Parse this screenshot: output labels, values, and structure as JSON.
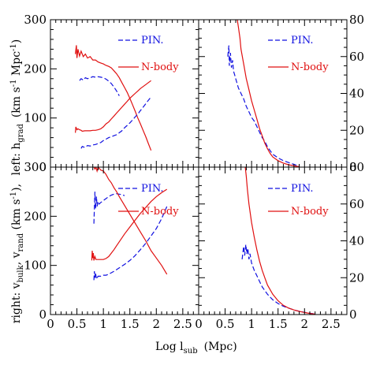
{
  "chart_data": [
    {
      "type": "line",
      "panel": "top-left",
      "xlim": [
        0,
        2.8
      ],
      "ylim": [
        0,
        300
      ],
      "legend": [
        {
          "label": "PIN.",
          "style": "dashed",
          "color": "#1010e0"
        },
        {
          "label": "N-body",
          "style": "solid",
          "color": "#e01010"
        }
      ],
      "series": [
        {
          "name": "PIN.",
          "style": "dashed",
          "color": "#1010e0",
          "x": [
            0.55,
            0.58,
            0.62,
            0.66,
            0.7,
            0.75,
            0.8,
            0.85,
            0.9,
            0.95,
            1.0,
            1.05,
            1.1,
            1.15,
            1.2,
            1.25,
            1.3
          ],
          "y": [
            176,
            180,
            177,
            182,
            180,
            182,
            184,
            183,
            184,
            183,
            182,
            179,
            175,
            170,
            163,
            155,
            145
          ]
        },
        {
          "name": "N-body",
          "style": "solid",
          "color": "#e01010",
          "x": [
            0.47,
            0.49,
            0.5,
            0.52,
            0.55,
            0.58,
            0.62,
            0.66,
            0.7,
            0.75,
            0.8,
            0.85,
            0.9,
            0.95,
            1.0,
            1.05,
            1.1,
            1.15,
            1.2,
            1.25,
            1.3,
            1.35,
            1.4,
            1.45,
            1.5,
            1.55,
            1.6,
            1.65,
            1.7,
            1.75,
            1.8,
            1.85,
            1.9
          ],
          "y": [
            230,
            248,
            222,
            240,
            226,
            236,
            225,
            230,
            222,
            225,
            218,
            218,
            214,
            212,
            210,
            207,
            205,
            202,
            196,
            190,
            182,
            172,
            162,
            152,
            140,
            127,
            114,
            100,
            88,
            75,
            62,
            48,
            34
          ]
        },
        {
          "name": "PIN.",
          "style": "dashed",
          "color": "#1010e0",
          "x": [
            0.58,
            0.6,
            0.65,
            0.7,
            0.75,
            0.8,
            0.85,
            0.9,
            0.95,
            1.0,
            1.05,
            1.1,
            1.15,
            1.2,
            1.25,
            1.3,
            1.35,
            1.4,
            1.45,
            1.5,
            1.55,
            1.6,
            1.65,
            1.7,
            1.75,
            1.8,
            1.85,
            1.9
          ],
          "y": [
            38,
            42,
            40,
            44,
            43,
            45,
            46,
            48,
            50,
            54,
            57,
            60,
            62,
            64,
            66,
            70,
            74,
            80,
            85,
            90,
            96,
            102,
            108,
            115,
            122,
            129,
            136,
            143
          ]
        },
        {
          "name": "N-body",
          "style": "solid",
          "color": "#e01010",
          "x": [
            0.47,
            0.48,
            0.5,
            0.52,
            0.55,
            0.58,
            0.6,
            0.65,
            0.7,
            0.75,
            0.8,
            0.85,
            0.9,
            0.95,
            1.0,
            1.05,
            1.1,
            1.15,
            1.2,
            1.25,
            1.3,
            1.35,
            1.4,
            1.45,
            1.5,
            1.55,
            1.6,
            1.65,
            1.7,
            1.75,
            1.8,
            1.85,
            1.9
          ],
          "y": [
            70,
            82,
            76,
            78,
            76,
            75,
            73,
            74,
            74,
            74,
            75,
            75,
            76,
            78,
            82,
            88,
            92,
            98,
            104,
            110,
            116,
            122,
            128,
            134,
            140,
            145,
            150,
            155,
            160,
            164,
            168,
            172,
            176
          ]
        }
      ]
    },
    {
      "type": "line",
      "panel": "top-right",
      "xlim": [
        0,
        2.8
      ],
      "ylim": [
        0,
        80
      ],
      "legend": [
        {
          "label": "PIN.",
          "style": "dashed",
          "color": "#1010e0"
        },
        {
          "label": "N-body",
          "style": "solid",
          "color": "#e01010"
        }
      ],
      "series": [
        {
          "name": "PIN.",
          "style": "dashed",
          "color": "#1010e0",
          "x": [
            0.55,
            0.57,
            0.58,
            0.6,
            0.62,
            0.64,
            0.66,
            0.68,
            0.7,
            0.75,
            0.8,
            0.85,
            0.9,
            0.95,
            1.0,
            1.05,
            1.1,
            1.15,
            1.2,
            1.25,
            1.3,
            1.35,
            1.4,
            1.5,
            1.6,
            1.7,
            1.8,
            1.9
          ],
          "y": [
            60,
            66,
            55,
            62,
            54,
            58,
            52,
            50,
            48,
            43,
            40,
            37,
            33,
            30,
            27,
            25,
            22,
            19,
            16,
            14,
            11,
            9,
            7,
            5,
            3.5,
            2.5,
            1.5,
            0.5
          ]
        },
        {
          "name": "N-body",
          "style": "solid",
          "color": "#e01010",
          "x": [
            0.73,
            0.75,
            0.78,
            0.8,
            0.85,
            0.9,
            0.95,
            1.0,
            1.05,
            1.1,
            1.15,
            1.2,
            1.25,
            1.3,
            1.35,
            1.4,
            1.5,
            1.6,
            1.7,
            1.8,
            1.9
          ],
          "y": [
            80,
            76,
            70,
            64,
            56,
            48,
            42,
            36,
            31,
            26,
            21,
            17,
            13,
            10,
            7.5,
            5.5,
            3.5,
            2.2,
            1.3,
            0.7,
            0.2
          ]
        }
      ]
    },
    {
      "type": "line",
      "panel": "bottom-left",
      "xlim": [
        0,
        2.8
      ],
      "ylim": [
        0,
        300
      ],
      "legend": [
        {
          "label": "PIN.",
          "style": "dashed",
          "color": "#1010e0"
        },
        {
          "label": "N-body",
          "style": "solid",
          "color": "#e01010"
        }
      ],
      "series": [
        {
          "name": "PIN.",
          "style": "dashed",
          "color": "#1010e0",
          "x": [
            0.82,
            0.84,
            0.85,
            0.87,
            0.88,
            0.9,
            0.92,
            0.95,
            1.0,
            1.05,
            1.1,
            1.15,
            1.2,
            1.25,
            1.3,
            1.35,
            1.4
          ],
          "y": [
            185,
            250,
            215,
            240,
            220,
            230,
            225,
            228,
            232,
            236,
            240,
            243,
            245,
            246,
            245,
            244,
            242
          ]
        },
        {
          "name": "N-body",
          "style": "solid",
          "color": "#e01010",
          "x": [
            0.82,
            0.84,
            0.86,
            0.88,
            0.9,
            0.95,
            1.0,
            1.05,
            1.1,
            1.15,
            1.2,
            1.25,
            1.3,
            1.4,
            1.5,
            1.6,
            1.7,
            1.8,
            1.9,
            2.0,
            2.1,
            2.2
          ],
          "y": [
            300,
            296,
            300,
            292,
            300,
            294,
            292,
            285,
            275,
            268,
            258,
            250,
            240,
            222,
            204,
            186,
            168,
            150,
            130,
            115,
            100,
            82
          ]
        },
        {
          "name": "PIN.",
          "style": "dashed",
          "color": "#1010e0",
          "x": [
            0.82,
            0.83,
            0.84,
            0.85,
            0.87,
            0.9,
            0.95,
            1.0,
            1.05,
            1.1,
            1.15,
            1.2,
            1.3,
            1.4,
            1.5,
            1.6,
            1.7,
            1.8,
            1.9,
            2.0,
            2.1,
            2.2
          ],
          "y": [
            70,
            88,
            75,
            85,
            72,
            78,
            78,
            80,
            80,
            82,
            85,
            88,
            95,
            102,
            110,
            120,
            132,
            145,
            160,
            175,
            195,
            220
          ]
        },
        {
          "name": "N-body",
          "style": "solid",
          "color": "#e01010",
          "x": [
            0.78,
            0.79,
            0.8,
            0.81,
            0.82,
            0.84,
            0.86,
            0.9,
            0.95,
            1.0,
            1.05,
            1.1,
            1.15,
            1.2,
            1.25,
            1.3,
            1.4,
            1.5,
            1.6,
            1.7,
            1.8,
            1.9,
            2.0,
            2.1,
            2.2
          ],
          "y": [
            110,
            130,
            115,
            125,
            110,
            118,
            112,
            112,
            112,
            112,
            114,
            118,
            125,
            132,
            140,
            148,
            164,
            178,
            192,
            206,
            218,
            230,
            240,
            248,
            255
          ]
        }
      ]
    },
    {
      "type": "line",
      "panel": "bottom-right",
      "xlim": [
        0,
        2.8
      ],
      "ylim": [
        0,
        80
      ],
      "legend": [
        {
          "label": "PIN.",
          "style": "dashed",
          "color": "#1010e0"
        },
        {
          "label": "N-body",
          "style": "solid",
          "color": "#e01010"
        }
      ],
      "series": [
        {
          "name": "PIN.",
          "style": "dashed",
          "color": "#1010e0",
          "x": [
            0.82,
            0.85,
            0.87,
            0.89,
            0.91,
            0.93,
            0.95,
            0.97,
            1.0,
            1.05,
            1.1,
            1.15,
            1.2,
            1.3,
            1.4,
            1.5,
            1.6,
            1.7,
            1.8,
            1.9,
            2.0,
            2.1,
            2.2
          ],
          "y": [
            30,
            37,
            32,
            38,
            33,
            36,
            30,
            33,
            28,
            24,
            21,
            18,
            15,
            11,
            8,
            6,
            4.5,
            3.5,
            2.5,
            1.8,
            1.2,
            0.7,
            0.3
          ]
        },
        {
          "name": "N-body",
          "style": "solid",
          "color": "#e01010",
          "x": [
            0.88,
            0.9,
            0.92,
            0.95,
            1.0,
            1.05,
            1.1,
            1.15,
            1.2,
            1.25,
            1.3,
            1.4,
            1.5,
            1.6,
            1.7,
            1.8,
            1.9,
            2.0,
            2.1,
            2.2
          ],
          "y": [
            80,
            75,
            68,
            60,
            50,
            42,
            35,
            29,
            24,
            20,
            16,
            11,
            7.5,
            5,
            3.5,
            2.5,
            1.7,
            1.1,
            0.6,
            0.2
          ]
        }
      ]
    }
  ],
  "xticks": [
    "0",
    "0.5",
    "1",
    "1.5",
    "2",
    "2.5"
  ],
  "xtick_values": [
    0,
    0.5,
    1,
    1.5,
    2,
    2.5
  ],
  "left_yticks": [
    "0",
    "100",
    "200",
    "300"
  ],
  "left_ytick_values": [
    0,
    100,
    200,
    300
  ],
  "right_yticks": [
    "0",
    "20",
    "40",
    "60",
    "80"
  ],
  "right_ytick_values": [
    0,
    20,
    40,
    60,
    80
  ],
  "xlabel": {
    "text": "Log l",
    "sub": "sub",
    "unit": "(Mpc)"
  },
  "ylabel": {
    "top": {
      "prefix": "(km s",
      "sup": "-1",
      "mid": " Mpc",
      "sup2": "-1",
      "suffix": ")",
      "lead": "left: h",
      "lead_sub": "grad"
    },
    "bottom": {
      "lead": "right: v",
      "sub1": "bulk",
      "mid": ", v",
      "sub2": "rand",
      "tail": " (km s",
      "sup": "-1",
      "end": "),"
    }
  }
}
